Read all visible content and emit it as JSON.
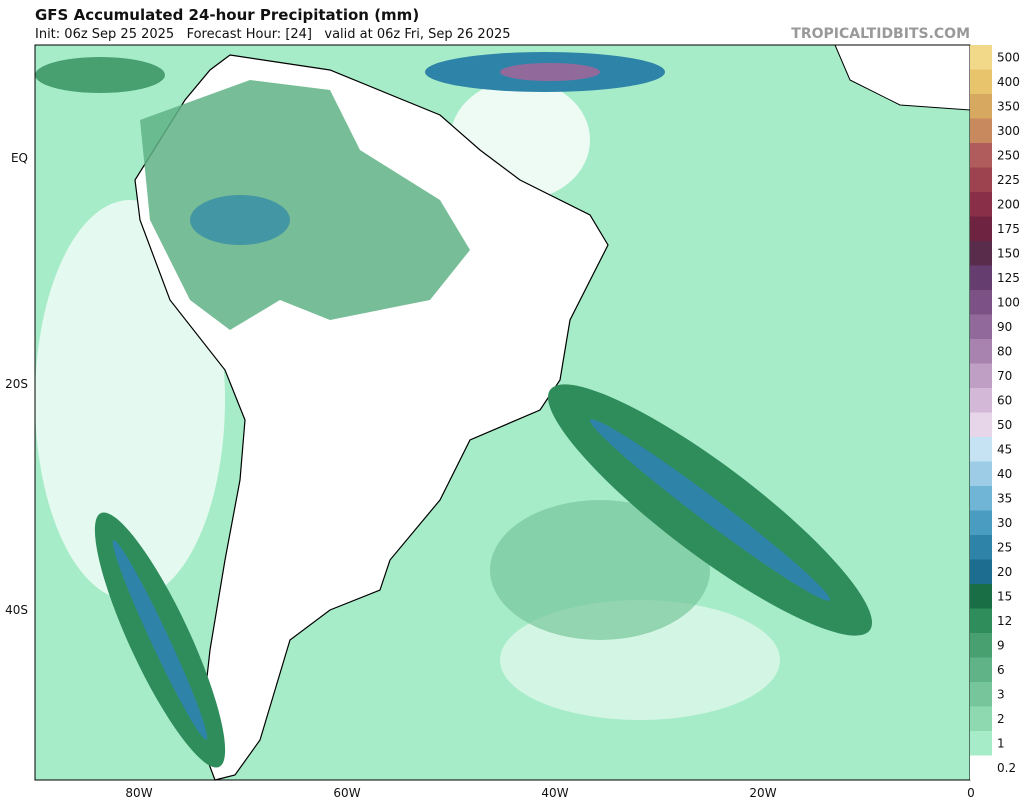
{
  "header": {
    "title": "GFS Accumulated 24-hour Precipitation (mm)",
    "subtitle": "Init: 06z Sep 25 2025   Forecast Hour: [24]   valid at 06z Fri, Sep 26 2025",
    "watermark": "TROPICALTIDBITS.COM"
  },
  "map": {
    "lat_labels": [
      "EQ",
      "20S",
      "40S"
    ],
    "lon_labels": [
      "80W",
      "60W",
      "40W",
      "20W",
      "0"
    ]
  },
  "colorbar": {
    "levels": [
      0.2,
      1,
      2,
      3,
      6,
      9,
      12,
      15,
      20,
      25,
      30,
      35,
      40,
      45,
      50,
      60,
      70,
      80,
      90,
      100,
      125,
      150,
      175,
      200,
      225,
      250,
      300,
      350,
      400,
      500
    ],
    "colors": [
      "#ffffff",
      "#a6ecc8",
      "#8fd9b1",
      "#77c69b",
      "#5fb386",
      "#48a071",
      "#2f8d5c",
      "#1a6e46",
      "#1c6d8f",
      "#2e84a8",
      "#4b9cc1",
      "#70b5d6",
      "#9ccce6",
      "#c5e3f2",
      "#e7d5ea",
      "#d4b8d8",
      "#c09fc5",
      "#a983b0",
      "#92699b",
      "#7c5286",
      "#653d6f",
      "#5a2c4c",
      "#6e2340",
      "#892f47",
      "#9c434f",
      "#b15c5c",
      "#c9895f",
      "#d6a860",
      "#e8c46c",
      "#f2d98a"
    ]
  }
}
